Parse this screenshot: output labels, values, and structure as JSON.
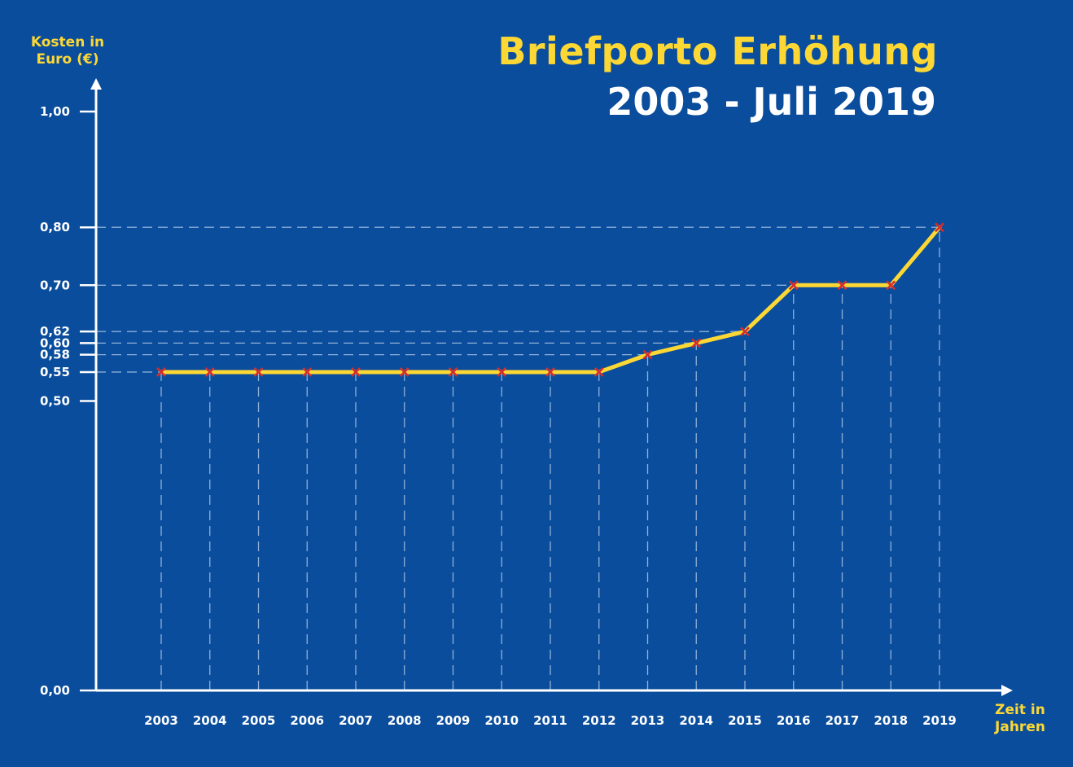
{
  "chart_data": {
    "type": "line",
    "title": "Briefporto Erhöhung",
    "subtitle": "2003 - Juli 2019",
    "ylabel": "Kosten in\nEuro (€)",
    "xlabel": "Zeit in\nJahren",
    "categories": [
      "2003",
      "2004",
      "2005",
      "2006",
      "2007",
      "2008",
      "2009",
      "2010",
      "2011",
      "2012",
      "2013",
      "2014",
      "2015",
      "2016",
      "2017",
      "2018",
      "2019"
    ],
    "series": [
      {
        "values": [
          0.55,
          0.55,
          0.55,
          0.55,
          0.55,
          0.55,
          0.55,
          0.55,
          0.55,
          0.55,
          0.58,
          0.6,
          0.62,
          0.7,
          0.7,
          0.7,
          0.8
        ]
      }
    ],
    "yticks": [
      {
        "value": 0.0,
        "label": "0,00"
      },
      {
        "value": 0.5,
        "label": "0,50"
      },
      {
        "value": 0.55,
        "label": "0,55"
      },
      {
        "value": 0.58,
        "label": "0,58"
      },
      {
        "value": 0.6,
        "label": "0,60"
      },
      {
        "value": 0.62,
        "label": "0,62"
      },
      {
        "value": 0.7,
        "label": "0,70"
      },
      {
        "value": 0.8,
        "label": "0,80"
      },
      {
        "value": 1.0,
        "label": "1,00"
      }
    ],
    "ylim": [
      0,
      1.0
    ],
    "grid": "dashed guide lines",
    "colors": {
      "background": "#0a4d9c",
      "line": "#fdd835",
      "marker": "#d32f2f",
      "axis": "#ffffff",
      "guide": "#8fb0d8",
      "accent_text": "#fdd835"
    }
  }
}
